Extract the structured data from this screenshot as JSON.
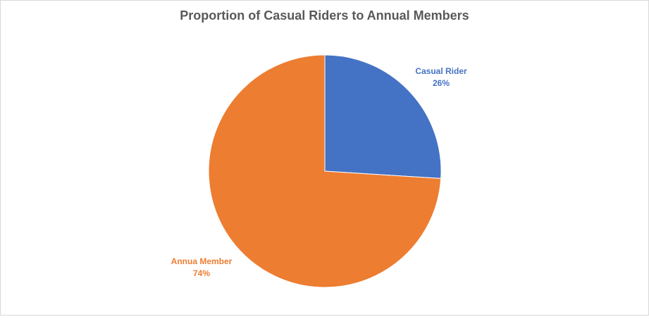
{
  "chart_data": {
    "type": "pie",
    "title": "Proportion  of Casual Riders to Annual Members",
    "slices": [
      {
        "name": "Casual Rider",
        "value": 26,
        "value_label": "26%",
        "color": "#4472c4",
        "label_color": "#4472c4"
      },
      {
        "name": "Annua Member",
        "value": 74,
        "value_label": "74%",
        "color": "#ed7d31",
        "label_color": "#ed7d31"
      }
    ],
    "start_angle": "12 o'clock",
    "direction": "clockwise",
    "legend": "none",
    "background": "#ffffff"
  }
}
